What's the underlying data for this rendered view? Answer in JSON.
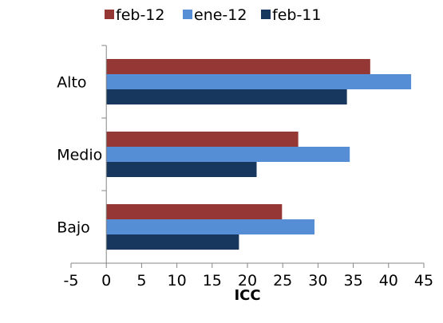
{
  "chart_data": {
    "type": "bar",
    "orientation": "horizontal",
    "categories": [
      "Alto",
      "Medio",
      "Bajo"
    ],
    "series": [
      {
        "name": "feb-12",
        "color": "#953735",
        "values": [
          37.4,
          27.2,
          24.9
        ]
      },
      {
        "name": "ene-12",
        "color": "#558ED5",
        "values": [
          43.2,
          34.5,
          29.5
        ]
      },
      {
        "name": "feb-11",
        "color": "#17375E",
        "values": [
          34.1,
          21.3,
          18.8
        ]
      }
    ],
    "xlabel": "ICC",
    "ylabel": "",
    "xlim": [
      -5,
      45
    ],
    "xticks": [
      "-5",
      "0",
      "5",
      "10",
      "15",
      "20",
      "25",
      "30",
      "35",
      "40",
      "45"
    ],
    "grid": false,
    "legend_position": "top"
  }
}
